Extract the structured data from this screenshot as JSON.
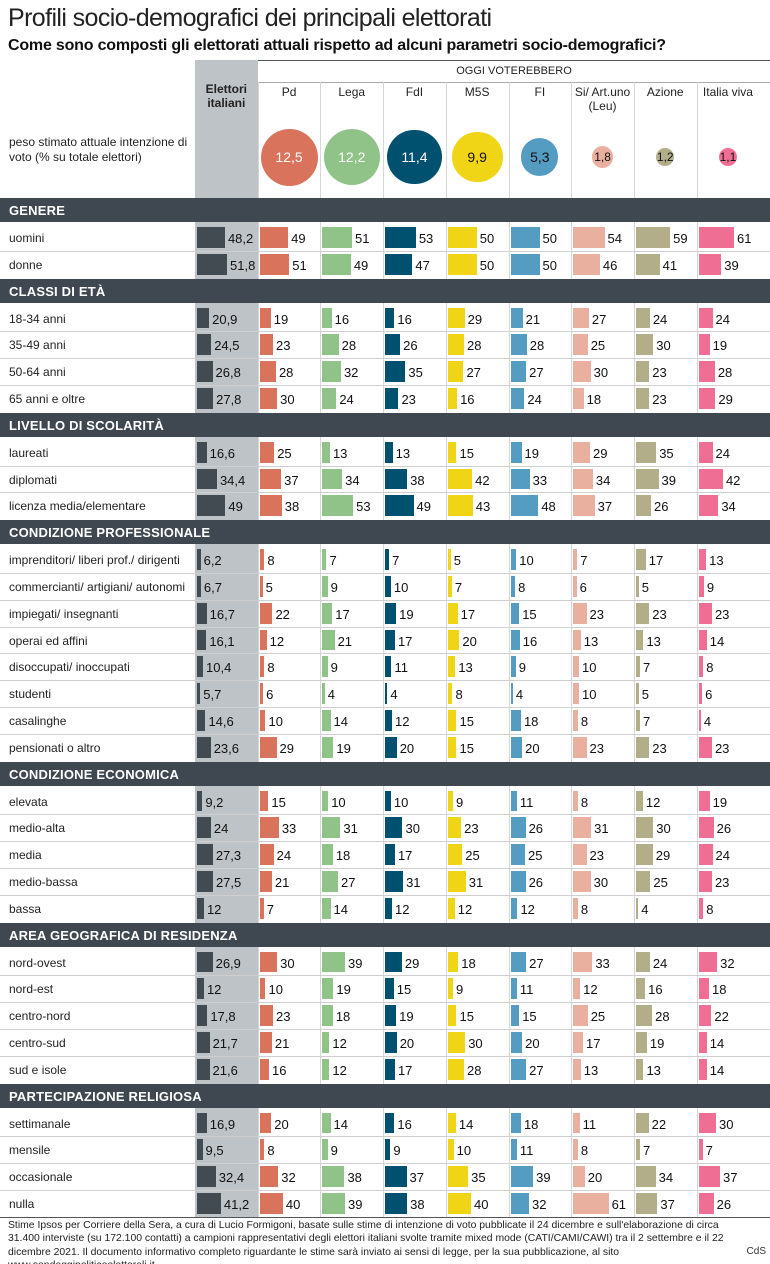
{
  "title": "Profili socio-demografici dei principali elettorati",
  "subtitle": "Come sono composti gli elettorati attuali rispetto ad alcuni parametri socio-demografici?",
  "group_header": "OGGI VOTEREBBERO",
  "colors": {
    "elettori": "#434b52",
    "Pd": "#d9735c",
    "Lega": "#8fc388",
    "FdI": "#00506f",
    "M5S": "#f0d416",
    "FI": "#559cc3",
    "SiArt": "#e9b0a0",
    "Azione": "#b3ae8a",
    "ItaliaViva": "#ef6e94",
    "category_bg": "#3f4850",
    "elettori_col_bg": "#bec3c8"
  },
  "chart_data": {
    "type": "table",
    "title": "Profili socio-demografici dei principali elettorati",
    "subtitle": "Come sono composti gli elettorati attuali rispetto ad alcuni parametri socio-demografici?",
    "columns": [
      {
        "key": "elettori",
        "label": "Elettori italiani"
      },
      {
        "key": "Pd",
        "label": "Pd"
      },
      {
        "key": "Lega",
        "label": "Lega"
      },
      {
        "key": "FdI",
        "label": "FdI"
      },
      {
        "key": "M5S",
        "label": "M5S"
      },
      {
        "key": "FI",
        "label": "FI"
      },
      {
        "key": "SiArt",
        "label": "Si/ Art.uno (Leu)"
      },
      {
        "key": "Azione",
        "label": "Azione"
      },
      {
        "key": "ItaliaViva",
        "label": "Italia viva"
      }
    ],
    "vote_intention": {
      "label": "peso stimato attuale intenzione di voto (% su totale elettori)",
      "values": [
        12.5,
        12.2,
        11.4,
        9.9,
        5.3,
        1.8,
        1.2,
        1.1
      ]
    },
    "sections": [
      {
        "name": "GENERE",
        "rows": [
          {
            "label": "uomini",
            "values": [
              48.2,
              49,
              51,
              53,
              50,
              50,
              54,
              59,
              61
            ]
          },
          {
            "label": "donne",
            "values": [
              51.8,
              51,
              49,
              47,
              50,
              50,
              46,
              41,
              39
            ]
          }
        ]
      },
      {
        "name": "CLASSI DI ETÀ",
        "rows": [
          {
            "label": "18-34 anni",
            "values": [
              20.9,
              19,
              16,
              16,
              29,
              21,
              27,
              24,
              24
            ]
          },
          {
            "label": "35-49 anni",
            "values": [
              24.5,
              23,
              28,
              26,
              28,
              28,
              25,
              30,
              19
            ]
          },
          {
            "label": "50-64 anni",
            "values": [
              26.8,
              28,
              32,
              35,
              27,
              27,
              30,
              23,
              28
            ]
          },
          {
            "label": "65 anni e oltre",
            "values": [
              27.8,
              30,
              24,
              23,
              16,
              24,
              18,
              23,
              29
            ]
          }
        ]
      },
      {
        "name": "LIVELLO DI SCOLARITÀ",
        "rows": [
          {
            "label": "laureati",
            "values": [
              16.6,
              25,
              13,
              13,
              15,
              19,
              29,
              35,
              24
            ]
          },
          {
            "label": "diplomati",
            "values": [
              34.4,
              37,
              34,
              38,
              42,
              33,
              34,
              39,
              42
            ]
          },
          {
            "label": "licenza media/elementare",
            "values": [
              49,
              38,
              53,
              49,
              43,
              48,
              37,
              26,
              34
            ]
          }
        ]
      },
      {
        "name": "CONDIZIONE PROFESSIONALE",
        "rows": [
          {
            "label": "imprenditori/ liberi prof./ dirigenti",
            "values": [
              6.2,
              8,
              7,
              7,
              5,
              10,
              7,
              17,
              13
            ]
          },
          {
            "label": "commercianti/ artigiani/ autonomi",
            "values": [
              6.7,
              5,
              9,
              10,
              7,
              8,
              6,
              5,
              9
            ]
          },
          {
            "label": "impiegati/ insegnanti",
            "values": [
              16.7,
              22,
              17,
              19,
              17,
              15,
              23,
              23,
              23
            ]
          },
          {
            "label": "operai ed affini",
            "values": [
              16.1,
              12,
              21,
              17,
              20,
              16,
              13,
              13,
              14
            ]
          },
          {
            "label": "disoccupati/ inoccupati",
            "values": [
              10.4,
              8,
              9,
              11,
              13,
              9,
              10,
              7,
              8
            ]
          },
          {
            "label": "studenti",
            "values": [
              5.7,
              6,
              4,
              4,
              8,
              4,
              10,
              5,
              6
            ]
          },
          {
            "label": "casalinghe",
            "values": [
              14.6,
              10,
              14,
              12,
              15,
              18,
              8,
              7,
              4
            ]
          },
          {
            "label": "pensionati o altro",
            "values": [
              23.6,
              29,
              19,
              20,
              15,
              20,
              23,
              23,
              23
            ]
          }
        ]
      },
      {
        "name": "CONDIZIONE ECONOMICA",
        "rows": [
          {
            "label": "elevata",
            "values": [
              9.2,
              15,
              10,
              10,
              9,
              11,
              8,
              12,
              19
            ]
          },
          {
            "label": "medio-alta",
            "values": [
              24,
              33,
              31,
              30,
              23,
              26,
              31,
              30,
              26
            ]
          },
          {
            "label": "media",
            "values": [
              27.3,
              24,
              18,
              17,
              25,
              25,
              23,
              29,
              24
            ]
          },
          {
            "label": "medio-bassa",
            "values": [
              27.5,
              21,
              27,
              31,
              31,
              26,
              30,
              25,
              23
            ]
          },
          {
            "label": "bassa",
            "values": [
              12,
              7,
              14,
              12,
              12,
              12,
              8,
              4,
              8
            ]
          }
        ]
      },
      {
        "name": "AREA GEOGRAFICA DI RESIDENZA",
        "rows": [
          {
            "label": "nord-ovest",
            "values": [
              26.9,
              30,
              39,
              29,
              18,
              27,
              33,
              24,
              32
            ]
          },
          {
            "label": "nord-est",
            "values": [
              12,
              10,
              19,
              15,
              9,
              11,
              12,
              16,
              18
            ]
          },
          {
            "label": "centro-nord",
            "values": [
              17.8,
              23,
              18,
              19,
              15,
              15,
              25,
              28,
              22
            ]
          },
          {
            "label": "centro-sud",
            "values": [
              21.7,
              21,
              12,
              20,
              30,
              20,
              17,
              19,
              14
            ]
          },
          {
            "label": "sud e isole",
            "values": [
              21.6,
              16,
              12,
              17,
              28,
              27,
              13,
              13,
              14
            ]
          }
        ]
      },
      {
        "name": "PARTECIPAZIONE RELIGIOSA",
        "rows": [
          {
            "label": "settimanale",
            "values": [
              16.9,
              20,
              14,
              16,
              14,
              18,
              11,
              22,
              30
            ]
          },
          {
            "label": "mensile",
            "values": [
              9.5,
              8,
              9,
              9,
              10,
              11,
              8,
              7,
              7
            ]
          },
          {
            "label": "occasionale",
            "values": [
              32.4,
              32,
              38,
              37,
              35,
              39,
              20,
              34,
              37
            ]
          },
          {
            "label": "nulla",
            "values": [
              41.2,
              40,
              39,
              38,
              40,
              32,
              61,
              37,
              26
            ]
          }
        ]
      }
    ]
  },
  "footnote": "Stime Ipsos per Corriere della Sera, a cura di Lucio Formigoni, basate sulle stime di intenzione di voto pubblicate il 24 dicembre e sull'elaborazione di circa 31.400 interviste (su 172.100 contatti) a campioni rappresentativi degli elettori italiani svolte tramite mixed mode (CATI/CAMI/CAWI) tra il 2 settembre e il 22 dicembre 2021. Il documento informativo completo riguardante le stime sarà inviato ai sensi di legge, per la sua pubblicazione, al sito www.sondaggipoliticoelettorali.it.",
  "credit": "CdS"
}
